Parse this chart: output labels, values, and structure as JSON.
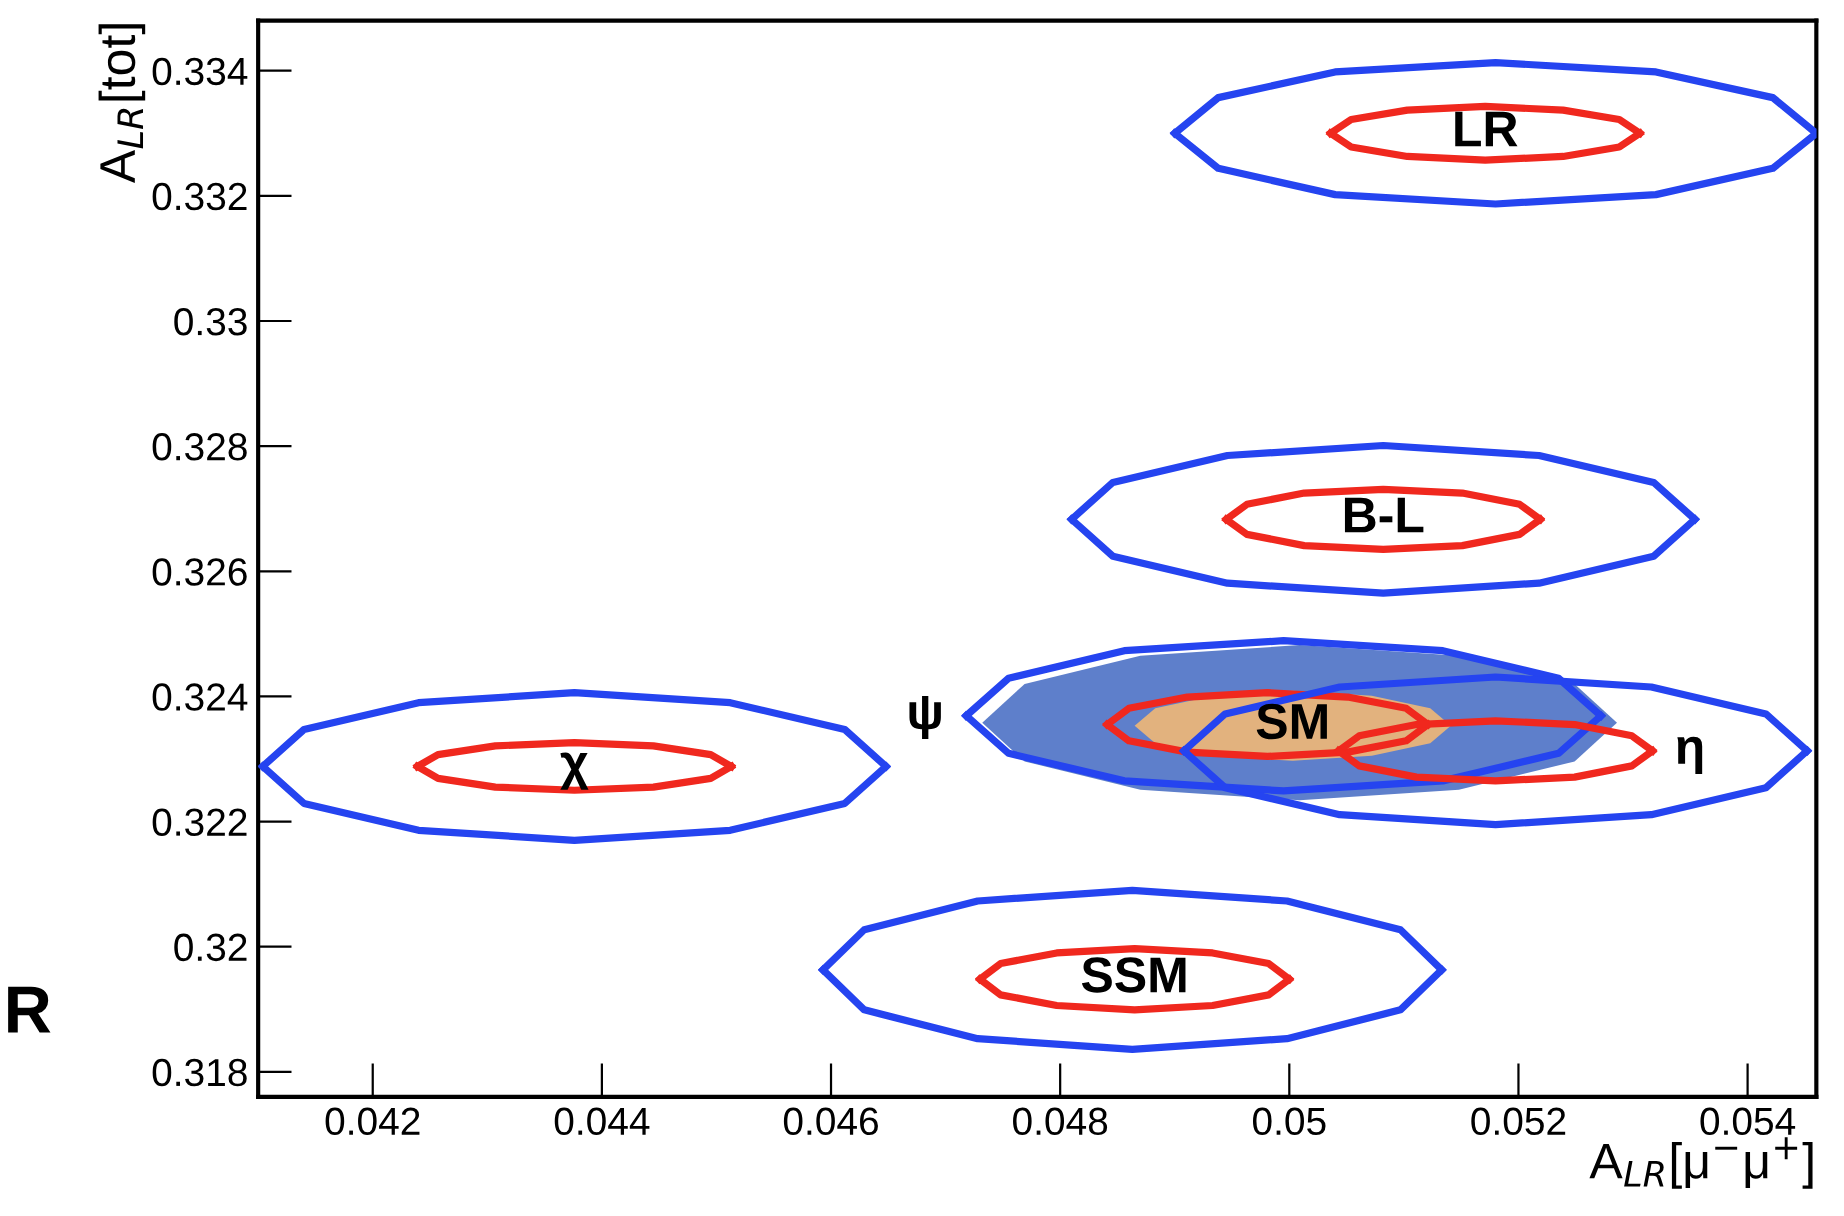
{
  "chart_data": {
    "type": "line",
    "xlabel": "A$_{LR}$[μ$^{−}$μ$^{+}$]",
    "ylabel": "A$_{LR}$[tot]",
    "xlim": [
      0.041,
      0.0546
    ],
    "ylim": [
      0.3176,
      0.3348
    ],
    "xticks": [
      0.042,
      0.044,
      0.046,
      0.048,
      0.05,
      0.052,
      0.054
    ],
    "yticks": [
      0.318,
      0.32,
      0.322,
      0.324,
      0.326,
      0.328,
      0.33,
      0.332,
      0.334
    ],
    "grid": false,
    "legend": false,
    "marker": "none",
    "line_style": "solid",
    "series": [
      {
        "type": "area",
        "color": "#5e7fcb",
        "x": [
          0.05286,
          0.05249,
          0.05148,
          0.05009,
          0.0487,
          0.04769,
          0.04732,
          0.04769,
          0.0487,
          0.05009,
          0.05148,
          0.05249
        ],
        "values": [
          0.32358,
          0.3242,
          0.32465,
          0.32482,
          0.32465,
          0.3242,
          0.32358,
          0.32296,
          0.32251,
          0.32234,
          0.32251,
          0.32296
        ]
      },
      {
        "type": "area",
        "color": "#e2b27e",
        "name": "SM",
        "x": [
          0.05141,
          0.05123,
          0.05072,
          0.05003,
          0.04934,
          0.04883,
          0.04865,
          0.04883,
          0.04934,
          0.05003,
          0.05072,
          0.05123
        ],
        "values": [
          0.32353,
          0.32381,
          0.32401,
          0.32409,
          0.32401,
          0.32381,
          0.32353,
          0.32325,
          0.32305,
          0.32297,
          0.32305,
          0.32325
        ]
      },
      {
        "color": "#2544f0",
        "x": [
          0.049,
          0.04938,
          0.0504,
          0.0518,
          0.0532,
          0.05422,
          0.0546
        ],
        "values": [
          0.333,
          0.33357,
          0.33398,
          0.33413,
          0.33398,
          0.33357,
          0.333
        ]
      },
      {
        "color": "#2544f0",
        "x": [
          0.049,
          0.04938,
          0.0504,
          0.0518,
          0.0532,
          0.05422,
          0.0546
        ],
        "values": [
          0.333,
          0.33244,
          0.33202,
          0.33187,
          0.33202,
          0.33244,
          0.333
        ]
      },
      {
        "color": "#f0281e",
        "name": "LR",
        "x": [
          0.05036,
          0.05054,
          0.05103,
          0.05171,
          0.05239,
          0.05288,
          0.05306
        ],
        "values": [
          0.333,
          0.33322,
          0.33337,
          0.33343,
          0.33337,
          0.33322,
          0.333
        ]
      },
      {
        "color": "#f0281e",
        "x": [
          0.05036,
          0.05054,
          0.05103,
          0.05171,
          0.05239,
          0.05288,
          0.05306
        ],
        "values": [
          0.333,
          0.33278,
          0.33263,
          0.33257,
          0.33263,
          0.33278,
          0.333
        ]
      },
      {
        "color": "#2544f0",
        "x": [
          0.0481,
          0.04846,
          0.04946,
          0.05082,
          0.05218,
          0.05318,
          0.05354
        ],
        "values": [
          0.32683,
          0.32742,
          0.32785,
          0.32801,
          0.32785,
          0.32742,
          0.32683
        ]
      },
      {
        "color": "#2544f0",
        "x": [
          0.0481,
          0.04846,
          0.04946,
          0.05082,
          0.05218,
          0.05318,
          0.05354
        ],
        "values": [
          0.32683,
          0.32624,
          0.32581,
          0.32565,
          0.32581,
          0.32624,
          0.32683
        ]
      },
      {
        "color": "#f0281e",
        "name": "B-L",
        "x": [
          0.04945,
          0.04963,
          0.05013,
          0.05082,
          0.05151,
          0.05201,
          0.05219
        ],
        "values": [
          0.32683,
          0.32707,
          0.32725,
          0.32731,
          0.32725,
          0.32707,
          0.32683
        ]
      },
      {
        "color": "#f0281e",
        "x": [
          0.04945,
          0.04963,
          0.05013,
          0.05082,
          0.05151,
          0.05201,
          0.05219
        ],
        "values": [
          0.32683,
          0.32659,
          0.32641,
          0.32635,
          0.32641,
          0.32659,
          0.32683
        ]
      },
      {
        "color": "#2544f0",
        "x": [
          0.04104,
          0.0414,
          0.0424,
          0.04376,
          0.04512,
          0.04612,
          0.04648
        ],
        "values": [
          0.32288,
          0.32347,
          0.3239,
          0.32406,
          0.3239,
          0.32347,
          0.32288
        ]
      },
      {
        "color": "#2544f0",
        "x": [
          0.04104,
          0.0414,
          0.0424,
          0.04376,
          0.04512,
          0.04612,
          0.04648
        ],
        "values": [
          0.32288,
          0.32229,
          0.32186,
          0.3217,
          0.32186,
          0.32229,
          0.32288
        ]
      },
      {
        "color": "#f0281e",
        "name": "χ",
        "x": [
          0.04239,
          0.04257,
          0.04307,
          0.04376,
          0.04445,
          0.04495,
          0.04513
        ],
        "values": [
          0.32288,
          0.32307,
          0.32321,
          0.32326,
          0.32321,
          0.32307,
          0.32288
        ]
      },
      {
        "color": "#f0281e",
        "x": [
          0.04239,
          0.04257,
          0.04307,
          0.04376,
          0.04445,
          0.04495,
          0.04513
        ],
        "values": [
          0.32288,
          0.32269,
          0.32255,
          0.3225,
          0.32255,
          0.32269,
          0.32288
        ]
      },
      {
        "color": "#2544f0",
        "x": [
          0.04593,
          0.04629,
          0.04728,
          0.04863,
          0.04998,
          0.05097,
          0.05133
        ],
        "values": [
          0.31963,
          0.32027,
          0.32073,
          0.3209,
          0.32073,
          0.32027,
          0.31963
        ]
      },
      {
        "color": "#2544f0",
        "x": [
          0.04593,
          0.04629,
          0.04728,
          0.04863,
          0.04998,
          0.05097,
          0.05133
        ],
        "values": [
          0.31963,
          0.31899,
          0.31853,
          0.31836,
          0.31853,
          0.31899,
          0.31963
        ]
      },
      {
        "color": "#f0281e",
        "name": "SSM",
        "x": [
          0.0473,
          0.04748,
          0.04797,
          0.04865,
          0.04933,
          0.04982,
          0.05
        ],
        "values": [
          0.31948,
          0.31973,
          0.3199,
          0.31997,
          0.3199,
          0.31973,
          0.31948
        ]
      },
      {
        "color": "#f0281e",
        "x": [
          0.0473,
          0.04748,
          0.04797,
          0.04865,
          0.04933,
          0.04982,
          0.05
        ],
        "values": [
          0.31948,
          0.31923,
          0.31906,
          0.31899,
          0.31906,
          0.31923,
          0.31948
        ]
      },
      {
        "color": "#2544f0",
        "x": [
          0.04718,
          0.04755,
          0.04856,
          0.04995,
          0.05134,
          0.05235,
          0.05272
        ],
        "values": [
          0.32369,
          0.32429,
          0.32473,
          0.32489,
          0.32473,
          0.32429,
          0.32369
        ]
      },
      {
        "color": "#2544f0",
        "x": [
          0.04718,
          0.04755,
          0.04856,
          0.04995,
          0.05134,
          0.05235,
          0.05272
        ],
        "values": [
          0.32369,
          0.32309,
          0.32265,
          0.32249,
          0.32265,
          0.32309,
          0.32369
        ]
      },
      {
        "color": "#f0281e",
        "x": [
          0.04841,
          0.0486,
          0.04911,
          0.04981,
          0.05051,
          0.05102,
          0.05121
        ],
        "values": [
          0.32355,
          0.32381,
          0.32399,
          0.32406,
          0.32399,
          0.32381,
          0.32355
        ]
      },
      {
        "color": "#f0281e",
        "x": [
          0.04841,
          0.0486,
          0.04911,
          0.04981,
          0.05051,
          0.05102,
          0.05121
        ],
        "values": [
          0.32355,
          0.32329,
          0.32311,
          0.32304,
          0.32311,
          0.32329,
          0.32355
        ]
      },
      {
        "color": "#2544f0",
        "x": [
          0.04908,
          0.04944,
          0.05044,
          0.0518,
          0.05316,
          0.05416,
          0.05452
        ],
        "values": [
          0.32313,
          0.32372,
          0.32415,
          0.32431,
          0.32415,
          0.32372,
          0.32313
        ]
      },
      {
        "color": "#2544f0",
        "x": [
          0.04908,
          0.04944,
          0.05044,
          0.0518,
          0.05316,
          0.05416,
          0.05452
        ],
        "values": [
          0.32313,
          0.32254,
          0.32211,
          0.32195,
          0.32211,
          0.32254,
          0.32313
        ]
      },
      {
        "color": "#f0281e",
        "x": [
          0.05043,
          0.05061,
          0.05111,
          0.0518,
          0.05249,
          0.05299,
          0.05317
        ],
        "values": [
          0.32313,
          0.32337,
          0.32355,
          0.32361,
          0.32355,
          0.32337,
          0.32313
        ]
      },
      {
        "color": "#f0281e",
        "x": [
          0.05043,
          0.05061,
          0.05111,
          0.0518,
          0.05249,
          0.05299,
          0.05317
        ],
        "values": [
          0.32313,
          0.32289,
          0.32271,
          0.32265,
          0.32271,
          0.32289,
          0.32313
        ]
      }
    ],
    "annotations": [
      {
        "text": "ψ",
        "x": 0.04718,
        "y": 0.32369
      },
      {
        "text": "η",
        "x": 0.05317,
        "y": 0.32313
      },
      "R"
    ]
  }
}
